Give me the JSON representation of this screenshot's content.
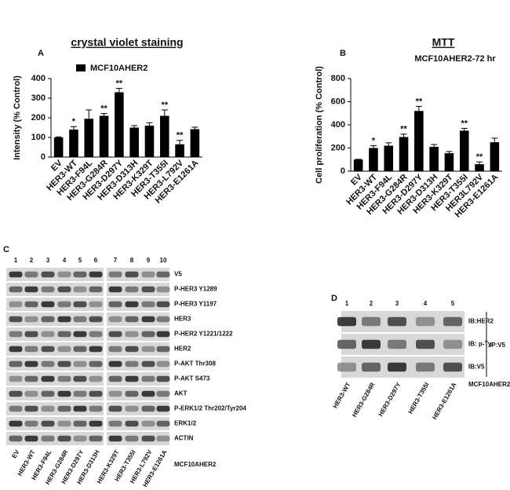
{
  "chart_data": [
    {
      "type": "bar",
      "panel": "A",
      "title": "crystal violet staining",
      "y_label": "Intensity (% Control)",
      "categories": [
        "EV",
        "HER3-WT",
        "HER3-F94L",
        "HER3-G284R",
        "HER3-D297Y",
        "HER3-D313H",
        "HER3-K329T",
        "HER3-T355I",
        "HER3-L792V",
        "HER3-E1261A"
      ],
      "series": [
        {
          "name": "MCF10AHER2",
          "color": "#000000",
          "values": [
            100,
            140,
            195,
            210,
            330,
            150,
            160,
            210,
            65,
            142
          ],
          "errors": [
            3,
            15,
            45,
            12,
            20,
            10,
            15,
            30,
            20,
            10
          ]
        }
      ],
      "significance": [
        null,
        "*",
        null,
        "**",
        "**",
        null,
        null,
        "**",
        "**",
        null
      ],
      "ylim": [
        0,
        400
      ],
      "yticks": [
        0,
        100,
        200,
        300,
        400
      ]
    },
    {
      "type": "bar",
      "panel": "B",
      "title": "MTT",
      "subtitle": "MCF10AHER2-72 hr",
      "y_label": "Cell proliferation (% Control)",
      "categories": [
        "EV",
        "HER3-WT",
        "HER3-F94L",
        "HER3-G284R",
        "HER3-D297Y",
        "HER3-D313H",
        "HER3-K329T",
        "HER3-T355I",
        "HER3L792V",
        "HER3-E1261A"
      ],
      "values": [
        100,
        200,
        220,
        295,
        520,
        210,
        155,
        350,
        60,
        250
      ],
      "errors": [
        3,
        20,
        25,
        25,
        40,
        20,
        15,
        20,
        20,
        35
      ],
      "color": "#000000",
      "significance": [
        null,
        "*",
        null,
        "**",
        "**",
        null,
        null,
        "**",
        "**",
        null
      ],
      "ylim": [
        0,
        800
      ],
      "yticks": [
        0,
        200,
        400,
        600,
        800
      ]
    }
  ],
  "blot_c": {
    "panel": "C",
    "lanes": [
      "1",
      "2",
      "3",
      "4",
      "5",
      "6",
      "7",
      "8",
      "9",
      "10"
    ],
    "rows": [
      "V5",
      "P-HER3 Y1289",
      "P-HER3 Y1197",
      "HER3",
      "P-HER2 Y1221/1222",
      "HER2",
      "P-AKT Thr308",
      "P-AKT S473",
      "AKT",
      "P-ERK1/2 Thr202/Tyr204",
      "ERK1/2",
      "ACTIN"
    ],
    "samples": [
      "EV",
      "HER3-WT",
      "HER3-F94L",
      "HER3-G284R",
      "HER3-D297Y",
      "HER3-D313H",
      "HER3-K329T",
      "HER3-T355I",
      "HER3-L792V",
      "HER3-E1261A"
    ],
    "cell_line": "MCF10AHER2"
  },
  "blot_d": {
    "panel": "D",
    "lanes": [
      "1",
      "2",
      "3",
      "4",
      "5"
    ],
    "rows": [
      "IB:HER2",
      "IB: p-Tyr",
      "IB:V5"
    ],
    "ip": "IP:V5",
    "samples": [
      "HER3-WT",
      "HER3-G284R",
      "HER3-D297Y",
      "HER3-T355I",
      "HER3-E1261A"
    ],
    "cell_line": "MCF10AHER2"
  }
}
